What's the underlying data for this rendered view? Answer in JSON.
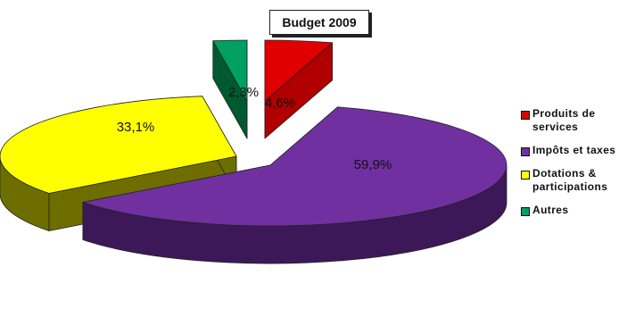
{
  "chart_data": {
    "type": "pie",
    "title": "Budget 2009",
    "slices": [
      {
        "name": "Produits de services",
        "value": 4.6,
        "label": "4,6%",
        "color": "#e00000",
        "side_color": "#b00000"
      },
      {
        "name": "Impôts et taxes",
        "value": 59.9,
        "label": "59,9%",
        "color": "#7030a0",
        "side_color": "#3c1858"
      },
      {
        "name": "Dotations & participations",
        "value": 33.1,
        "label": "33,1%",
        "color": "#ffff00",
        "side_color": "#6e6e00"
      },
      {
        "name": "Autres",
        "value": 2.3,
        "label": "2,3%",
        "color": "#00a060",
        "side_color": "#005a30"
      }
    ],
    "legend_position": "right",
    "style": "3d-exploded"
  }
}
